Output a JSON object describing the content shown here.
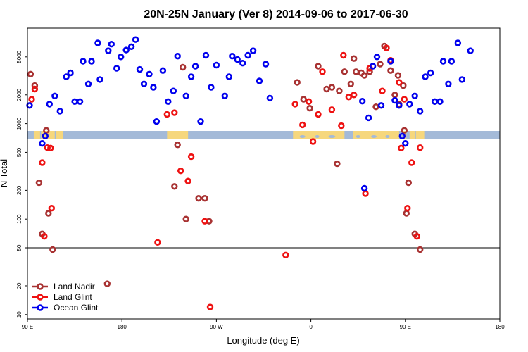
{
  "chart_data": {
    "type": "scatter",
    "title": "20N-25N January (Ver 8)   2014-09-06 to 2017-06-30",
    "xlabel": "Longitude (deg E)",
    "ylabel": "N Total",
    "x_scale": "longitude, 90E to 180E wrapping (450 degrees shown)",
    "y_scale": "log",
    "xlim": [
      90,
      540
    ],
    "ylim": [
      9,
      10000
    ],
    "x_ticks": [
      {
        "value": 90,
        "label": "90 E"
      },
      {
        "value": 180,
        "label": "180"
      },
      {
        "value": 270,
        "label": "90 W"
      },
      {
        "value": 360,
        "label": "0"
      },
      {
        "value": 450,
        "label": "90 E"
      },
      {
        "value": 540,
        "label": "180"
      }
    ],
    "y_ticks": [
      {
        "value": 10,
        "label": "10"
      },
      {
        "value": 20,
        "label": "20"
      },
      {
        "value": 50,
        "label": "50"
      },
      {
        "value": 100,
        "label": "100"
      },
      {
        "value": 200,
        "label": "200"
      },
      {
        "value": 500,
        "label": "500"
      },
      {
        "value": 1000,
        "label": "1000"
      },
      {
        "value": 2000,
        "label": "2000"
      },
      {
        "value": 5000,
        "label": "5000"
      }
    ],
    "reference_line_y": 50,
    "map_strip": {
      "lat_range": "20N-25N",
      "ocean_color": "#a4bad8",
      "land_color": "#f6d77d"
    },
    "legend": {
      "placement": "bottom-left"
    },
    "grid": false,
    "series": [
      {
        "name": "Land Nadir",
        "color": "#a83232",
        "points": [
          [
            93,
            3300
          ],
          [
            97,
            2500
          ],
          [
            101,
            240
          ],
          [
            108,
            850
          ],
          [
            110,
            115
          ],
          [
            104,
            70
          ],
          [
            114,
            48
          ],
          [
            166,
            21
          ],
          [
            230,
            220
          ],
          [
            233,
            600
          ],
          [
            238,
            3900
          ],
          [
            241,
            100
          ],
          [
            253,
            165
          ],
          [
            259,
            165
          ],
          [
            263,
            95
          ],
          [
            347,
            2700
          ],
          [
            353,
            1800
          ],
          [
            359,
            1450
          ],
          [
            367,
            4000
          ],
          [
            375,
            2300
          ],
          [
            380,
            2400
          ],
          [
            385,
            380
          ],
          [
            387,
            2200
          ],
          [
            392,
            3500
          ],
          [
            398,
            2600
          ],
          [
            401,
            4800
          ],
          [
            403,
            3500
          ],
          [
            408,
            3400
          ],
          [
            411,
            3200
          ],
          [
            416,
            3500
          ],
          [
            422,
            1500
          ],
          [
            426,
            4200
          ],
          [
            430,
            6500
          ],
          [
            436,
            3600
          ],
          [
            440,
            2000
          ],
          [
            443,
            3200
          ],
          [
            448,
            2500
          ],
          [
            444,
            1600
          ],
          [
            449,
            850
          ],
          [
            453,
            240
          ],
          [
            459,
            70
          ],
          [
            464,
            48
          ],
          [
            451,
            115
          ]
        ]
      },
      {
        "name": "Land Glint",
        "color": "#ee1111",
        "points": [
          [
            94,
            1800
          ],
          [
            97,
            2300
          ],
          [
            104,
            390
          ],
          [
            106,
            66
          ],
          [
            112,
            555
          ],
          [
            113,
            130
          ],
          [
            109,
            560
          ],
          [
            214,
            57
          ],
          [
            223,
            1250
          ],
          [
            230,
            1300
          ],
          [
            236,
            320
          ],
          [
            243,
            250
          ],
          [
            246,
            450
          ],
          [
            259,
            95
          ],
          [
            264,
            12
          ],
          [
            336,
            42
          ],
          [
            345,
            1600
          ],
          [
            352,
            970
          ],
          [
            358,
            1700
          ],
          [
            362,
            650
          ],
          [
            367,
            1250
          ],
          [
            371,
            3500
          ],
          [
            380,
            1400
          ],
          [
            389,
            950
          ],
          [
            391,
            5200
          ],
          [
            396,
            1900
          ],
          [
            401,
            2000
          ],
          [
            412,
            185
          ],
          [
            416,
            3800
          ],
          [
            428,
            2200
          ],
          [
            432,
            6200
          ],
          [
            436,
            4600
          ],
          [
            444,
            2700
          ],
          [
            449,
            1800
          ],
          [
            446,
            555
          ],
          [
            452,
            130
          ],
          [
            456,
            390
          ],
          [
            461,
            66
          ],
          [
            464,
            560
          ]
        ]
      },
      {
        "name": "Ocean Glint",
        "color": "#0000ee",
        "points": [
          [
            92,
            1550
          ],
          [
            104,
            620
          ],
          [
            107,
            740
          ],
          [
            111,
            1600
          ],
          [
            116,
            1950
          ],
          [
            121,
            1350
          ],
          [
            127,
            3100
          ],
          [
            131,
            3400
          ],
          [
            135,
            1700
          ],
          [
            140,
            1700
          ],
          [
            143,
            4500
          ],
          [
            148,
            2600
          ],
          [
            151,
            4500
          ],
          [
            157,
            7000
          ],
          [
            159,
            2900
          ],
          [
            167,
            5800
          ],
          [
            170,
            6800
          ],
          [
            175,
            3800
          ],
          [
            179,
            5000
          ],
          [
            184,
            5900
          ],
          [
            189,
            6400
          ],
          [
            193,
            7600
          ],
          [
            197,
            3700
          ],
          [
            201,
            2600
          ],
          [
            206,
            3300
          ],
          [
            210,
            2400
          ],
          [
            213,
            1050
          ],
          [
            219,
            3600
          ],
          [
            224,
            1700
          ],
          [
            229,
            2200
          ],
          [
            233,
            5100
          ],
          [
            241,
            1950
          ],
          [
            246,
            3100
          ],
          [
            250,
            4000
          ],
          [
            255,
            1050
          ],
          [
            260,
            5200
          ],
          [
            265,
            2400
          ],
          [
            270,
            4100
          ],
          [
            278,
            1950
          ],
          [
            282,
            3100
          ],
          [
            285,
            5100
          ],
          [
            290,
            4700
          ],
          [
            295,
            4300
          ],
          [
            300,
            5200
          ],
          [
            305,
            5800
          ],
          [
            311,
            2800
          ],
          [
            317,
            4200
          ],
          [
            321,
            1850
          ],
          [
            409,
            1720
          ],
          [
            411,
            210
          ],
          [
            415,
            1150
          ],
          [
            419,
            4000
          ],
          [
            423,
            5000
          ],
          [
            427,
            1550
          ],
          [
            436,
            4500
          ],
          [
            440,
            1750
          ],
          [
            444,
            1550
          ],
          [
            447,
            740
          ],
          [
            450,
            620
          ],
          [
            454,
            1600
          ],
          [
            459,
            1950
          ],
          [
            464,
            1350
          ],
          [
            469,
            3100
          ],
          [
            474,
            3400
          ],
          [
            478,
            1700
          ],
          [
            483,
            1700
          ],
          [
            486,
            4500
          ],
          [
            491,
            2600
          ],
          [
            494,
            4500
          ],
          [
            500,
            7000
          ],
          [
            504,
            2900
          ],
          [
            512,
            5800
          ]
        ]
      }
    ]
  }
}
